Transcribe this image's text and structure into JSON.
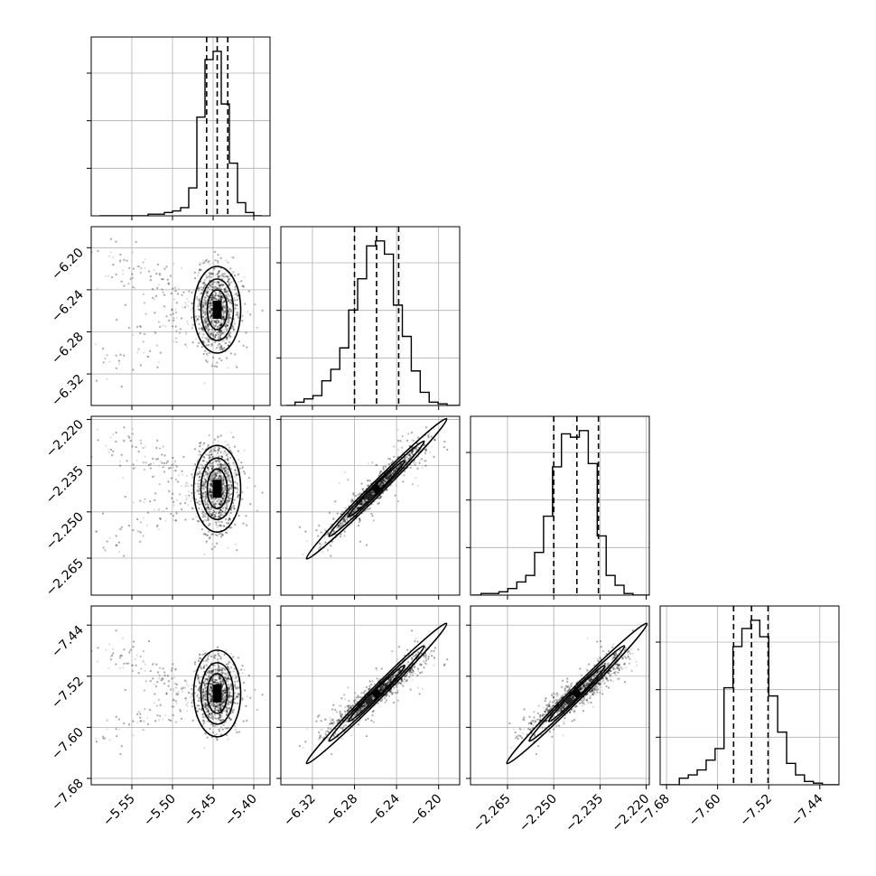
{
  "chart_data": {
    "type": "corner",
    "parameters": [
      {
        "range": [
          -5.6,
          -5.38
        ],
        "ticks": [
          -5.55,
          -5.5,
          -5.45,
          -5.4
        ],
        "tick_labels": [
          "−5.55",
          "−5.50",
          "−5.45",
          "−5.40"
        ],
        "mean": -5.445,
        "sd": 0.013,
        "quantiles": [
          -5.458,
          -5.445,
          -5.432
        ]
      },
      {
        "range": [
          -6.35,
          -6.18
        ],
        "ticks": [
          -6.32,
          -6.28,
          -6.24,
          -6.2
        ],
        "tick_labels": [
          "−6.32",
          "−6.28",
          "−6.24",
          "−6.20"
        ],
        "mean": -6.259,
        "sd": 0.02,
        "quantiles": [
          -6.28,
          -6.259,
          -6.238
        ]
      },
      {
        "range": [
          -2.277,
          -2.219
        ],
        "ticks": [
          -2.265,
          -2.25,
          -2.235,
          -2.22
        ],
        "tick_labels": [
          "−2.265",
          "−2.250",
          "−2.235",
          "−2.220"
        ],
        "mean": -2.2425,
        "sd": 0.0068,
        "quantiles": [
          -2.25,
          -2.2425,
          -2.2355
        ]
      },
      {
        "range": [
          -7.69,
          -7.41
        ],
        "ticks": [
          -7.68,
          -7.6,
          -7.52,
          -7.44
        ],
        "tick_labels": [
          "−7.68",
          "−7.60",
          "−7.52",
          "−7.44"
        ],
        "mean": -7.547,
        "sd": 0.027,
        "quantiles": [
          -7.575,
          -7.547,
          -7.521
        ]
      }
    ],
    "histograms": [
      {
        "bins": [
          -5.59,
          -5.58,
          -5.57,
          -5.56,
          -5.55,
          -5.54,
          -5.53,
          -5.52,
          -5.51,
          -5.5,
          -5.49,
          -5.48,
          -5.47,
          -5.46,
          -5.45,
          -5.44,
          -5.43,
          -5.42,
          -5.41,
          -5.4,
          -5.39
        ],
        "counts": [
          0,
          0,
          0,
          0,
          0,
          0,
          1,
          1,
          2,
          3,
          5,
          17,
          60,
          95,
          100,
          68,
          32,
          8,
          2,
          0
        ]
      },
      {
        "bins": [
          -6.345,
          -6.3365,
          -6.328,
          -6.3195,
          -6.311,
          -6.3025,
          -6.294,
          -6.2855,
          -6.277,
          -6.2685,
          -6.26,
          -6.2515,
          -6.243,
          -6.2345,
          -6.226,
          -6.2175,
          -6.209,
          -6.2005,
          -6.192,
          -6.1835,
          -6.175
        ],
        "counts": [
          0,
          2,
          4,
          6,
          15,
          22,
          35,
          58,
          77,
          97,
          100,
          92,
          61,
          42,
          21,
          8,
          2,
          1,
          0,
          0
        ]
      },
      {
        "bins": [
          -2.2765,
          -2.2736,
          -2.2707,
          -2.2678,
          -2.2649,
          -2.262,
          -2.2591,
          -2.2562,
          -2.2533,
          -2.2504,
          -2.2475,
          -2.2446,
          -2.2417,
          -2.2388,
          -2.2359,
          -2.233,
          -2.2301,
          -2.2272,
          -2.2243,
          -2.2214,
          -2.2185
        ],
        "counts": [
          0,
          1,
          1,
          2,
          4,
          8,
          12,
          26,
          48,
          78,
          98,
          96,
          100,
          80,
          36,
          12,
          6,
          1,
          0,
          0
        ]
      },
      {
        "bins": [
          -7.688,
          -7.674,
          -7.66,
          -7.646,
          -7.632,
          -7.618,
          -7.604,
          -7.59,
          -7.576,
          -7.562,
          -7.548,
          -7.534,
          -7.52,
          -7.506,
          -7.492,
          -7.478,
          -7.464,
          -7.45,
          -7.436,
          -7.422,
          -7.408
        ],
        "counts": [
          0,
          0,
          4,
          6,
          9,
          15,
          22,
          59,
          84,
          95,
          100,
          90,
          54,
          32,
          13,
          6,
          2,
          1,
          0,
          0
        ]
      }
    ],
    "quantiles_shown": [
      0.16,
      0.5,
      0.84
    ],
    "contour_levels": [
      0.5,
      1.0,
      1.5
    ],
    "grid": true
  }
}
